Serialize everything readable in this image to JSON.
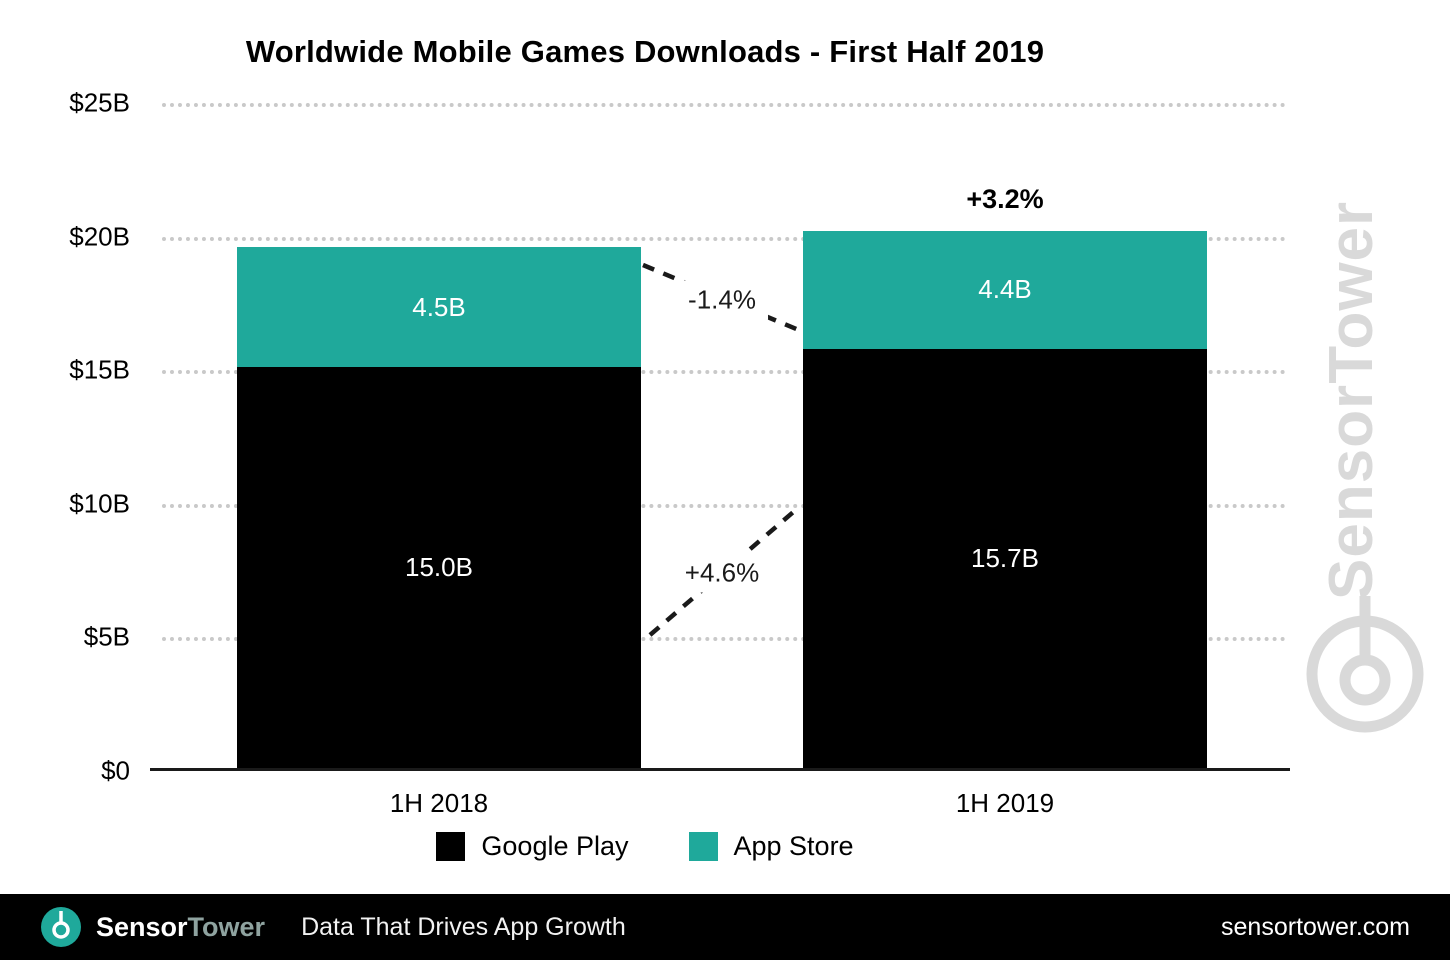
{
  "chart_data": {
    "type": "bar",
    "stacked": true,
    "title": "Worldwide Mobile Games Downloads - First Half 2019",
    "categories": [
      "1H 2018",
      "1H 2019"
    ],
    "series": [
      {
        "name": "Google Play",
        "color": "#000000",
        "values": [
          15.0,
          15.7
        ],
        "bar_labels": [
          "15.0B",
          "15.7B"
        ],
        "label_color": "#ffffff"
      },
      {
        "name": "App Store",
        "color": "#1fa99b",
        "values": [
          4.5,
          4.4
        ],
        "bar_labels": [
          "4.5B",
          "4.4B"
        ],
        "label_color": "#ffffff"
      }
    ],
    "y_ticks": [
      {
        "value": 0,
        "label": "$0"
      },
      {
        "value": 5,
        "label": "$5B"
      },
      {
        "value": 10,
        "label": "$10B"
      },
      {
        "value": 15,
        "label": "$15B"
      },
      {
        "value": 20,
        "label": "$20B"
      },
      {
        "value": 25,
        "label": "$25B"
      }
    ],
    "ylim": [
      0,
      25
    ],
    "grid": "horizontal-dotted",
    "legend_position": "bottom",
    "annotations": [
      {
        "label": "+3.2%",
        "type": "total-change",
        "target": "1H 2019"
      },
      {
        "label": "-1.4%",
        "type": "series-change",
        "target": "App Store"
      },
      {
        "label": "+4.6%",
        "type": "series-change",
        "target": "Google Play"
      }
    ]
  },
  "watermark": {
    "text": "SensorTower"
  },
  "footer": {
    "brand_sensor": "Sensor",
    "brand_tower": "Tower",
    "tagline": "Data That Drives App Growth",
    "website": "sensortower.com"
  },
  "colors": {
    "accent_teal": "#1fa99b",
    "grid": "#c9c9c9",
    "watermark": "#d9d9d9",
    "footer_bg": "#000000"
  }
}
